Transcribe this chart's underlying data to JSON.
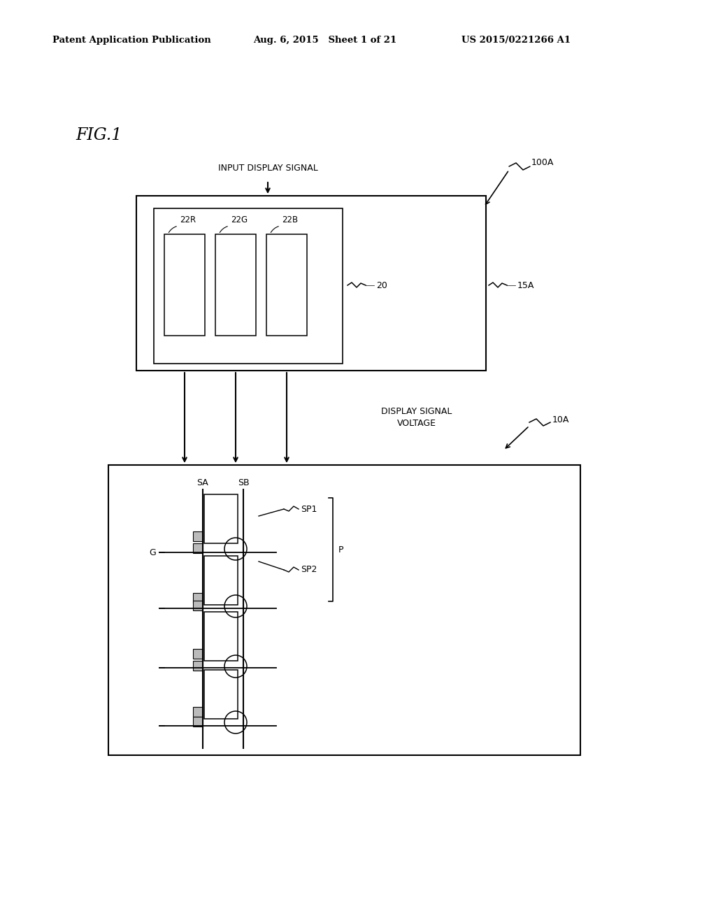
{
  "bg_color": "#ffffff",
  "header_left": "Patent Application Publication",
  "header_mid": "Aug. 6, 2015   Sheet 1 of 21",
  "header_right": "US 2015/0221266 A1",
  "fig_label": "FIG.1",
  "label_100A": "100A",
  "label_15A": "15A",
  "label_10A": "10A",
  "label_input_display": "INPUT DISPLAY SIGNAL",
  "label_display_signal": "DISPLAY SIGNAL\nVOLTAGE",
  "label_20": "20",
  "label_SA": "SA",
  "label_SB": "SB",
  "label_SP1": "SP1",
  "label_SP2": "SP2",
  "label_G": "G",
  "label_P": "P",
  "label_22R": "22R",
  "label_22G": "22G",
  "label_22B": "22B"
}
